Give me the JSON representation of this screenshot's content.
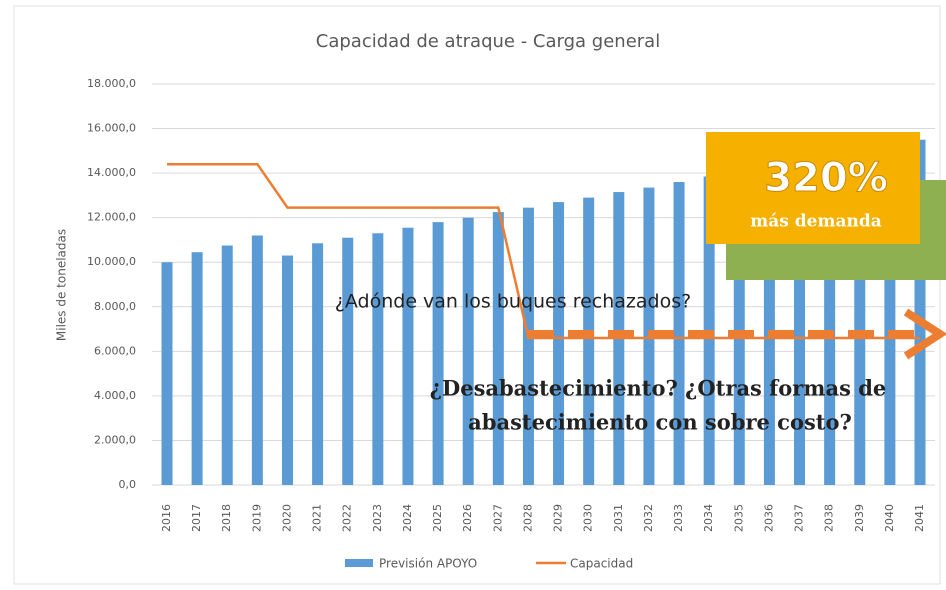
{
  "chart_data": {
    "type": "bar",
    "title": "Capacidad de atraque - Carga general",
    "y_label": "Miles de toneladas",
    "categories": [
      "2016",
      "2017",
      "2018",
      "2019",
      "2020",
      "2021",
      "2022",
      "2023",
      "2024",
      "2025",
      "2026",
      "2027",
      "2028",
      "2029",
      "2030",
      "2031",
      "2032",
      "2033",
      "2034",
      "2035",
      "2036",
      "2037",
      "2038",
      "2039",
      "2040",
      "2041"
    ],
    "series": [
      {
        "name": "Previsión APOYO",
        "type": "bar",
        "color": "#5b9bd5",
        "values": [
          10000,
          10450,
          10750,
          11200,
          10300,
          10850,
          11100,
          11300,
          11550,
          11800,
          12000,
          12250,
          12450,
          12700,
          12900,
          13150,
          13350,
          13600,
          13850,
          14050,
          14300,
          14550,
          14800,
          15050,
          15300,
          15500
        ]
      },
      {
        "name": "Capacidad",
        "type": "line",
        "color": "#ed7d31",
        "values": [
          14400,
          14400,
          14400,
          14400,
          12450,
          12450,
          12450,
          12450,
          12450,
          12450,
          12450,
          12450,
          6600,
          6600,
          6600,
          6600,
          6600,
          6600,
          6600,
          6600,
          6600,
          6600,
          6600,
          6600,
          6600,
          6600
        ]
      }
    ],
    "ylim": [
      0,
      18000
    ],
    "yticks": [
      {
        "value": 0,
        "label": "0,0"
      },
      {
        "value": 2000,
        "label": "2.000,0"
      },
      {
        "value": 4000,
        "label": "4.000,0"
      },
      {
        "value": 6000,
        "label": "6.000,0"
      },
      {
        "value": 8000,
        "label": "8.000,0"
      },
      {
        "value": 10000,
        "label": "10.000,0"
      },
      {
        "value": 12000,
        "label": "12.000,0"
      },
      {
        "value": 14000,
        "label": "14.000,0"
      },
      {
        "value": 16000,
        "label": "16.000,0"
      },
      {
        "value": 18000,
        "label": "18.000,0"
      }
    ],
    "grid": true,
    "legend": "bottom",
    "annotations": [
      "¿Adónde van los buques rechazados?",
      "¿Desabastecimiento? ¿Otras formas de",
      "abastecimiento con sobre costo?",
      "320%",
      "más demanda"
    ]
  }
}
